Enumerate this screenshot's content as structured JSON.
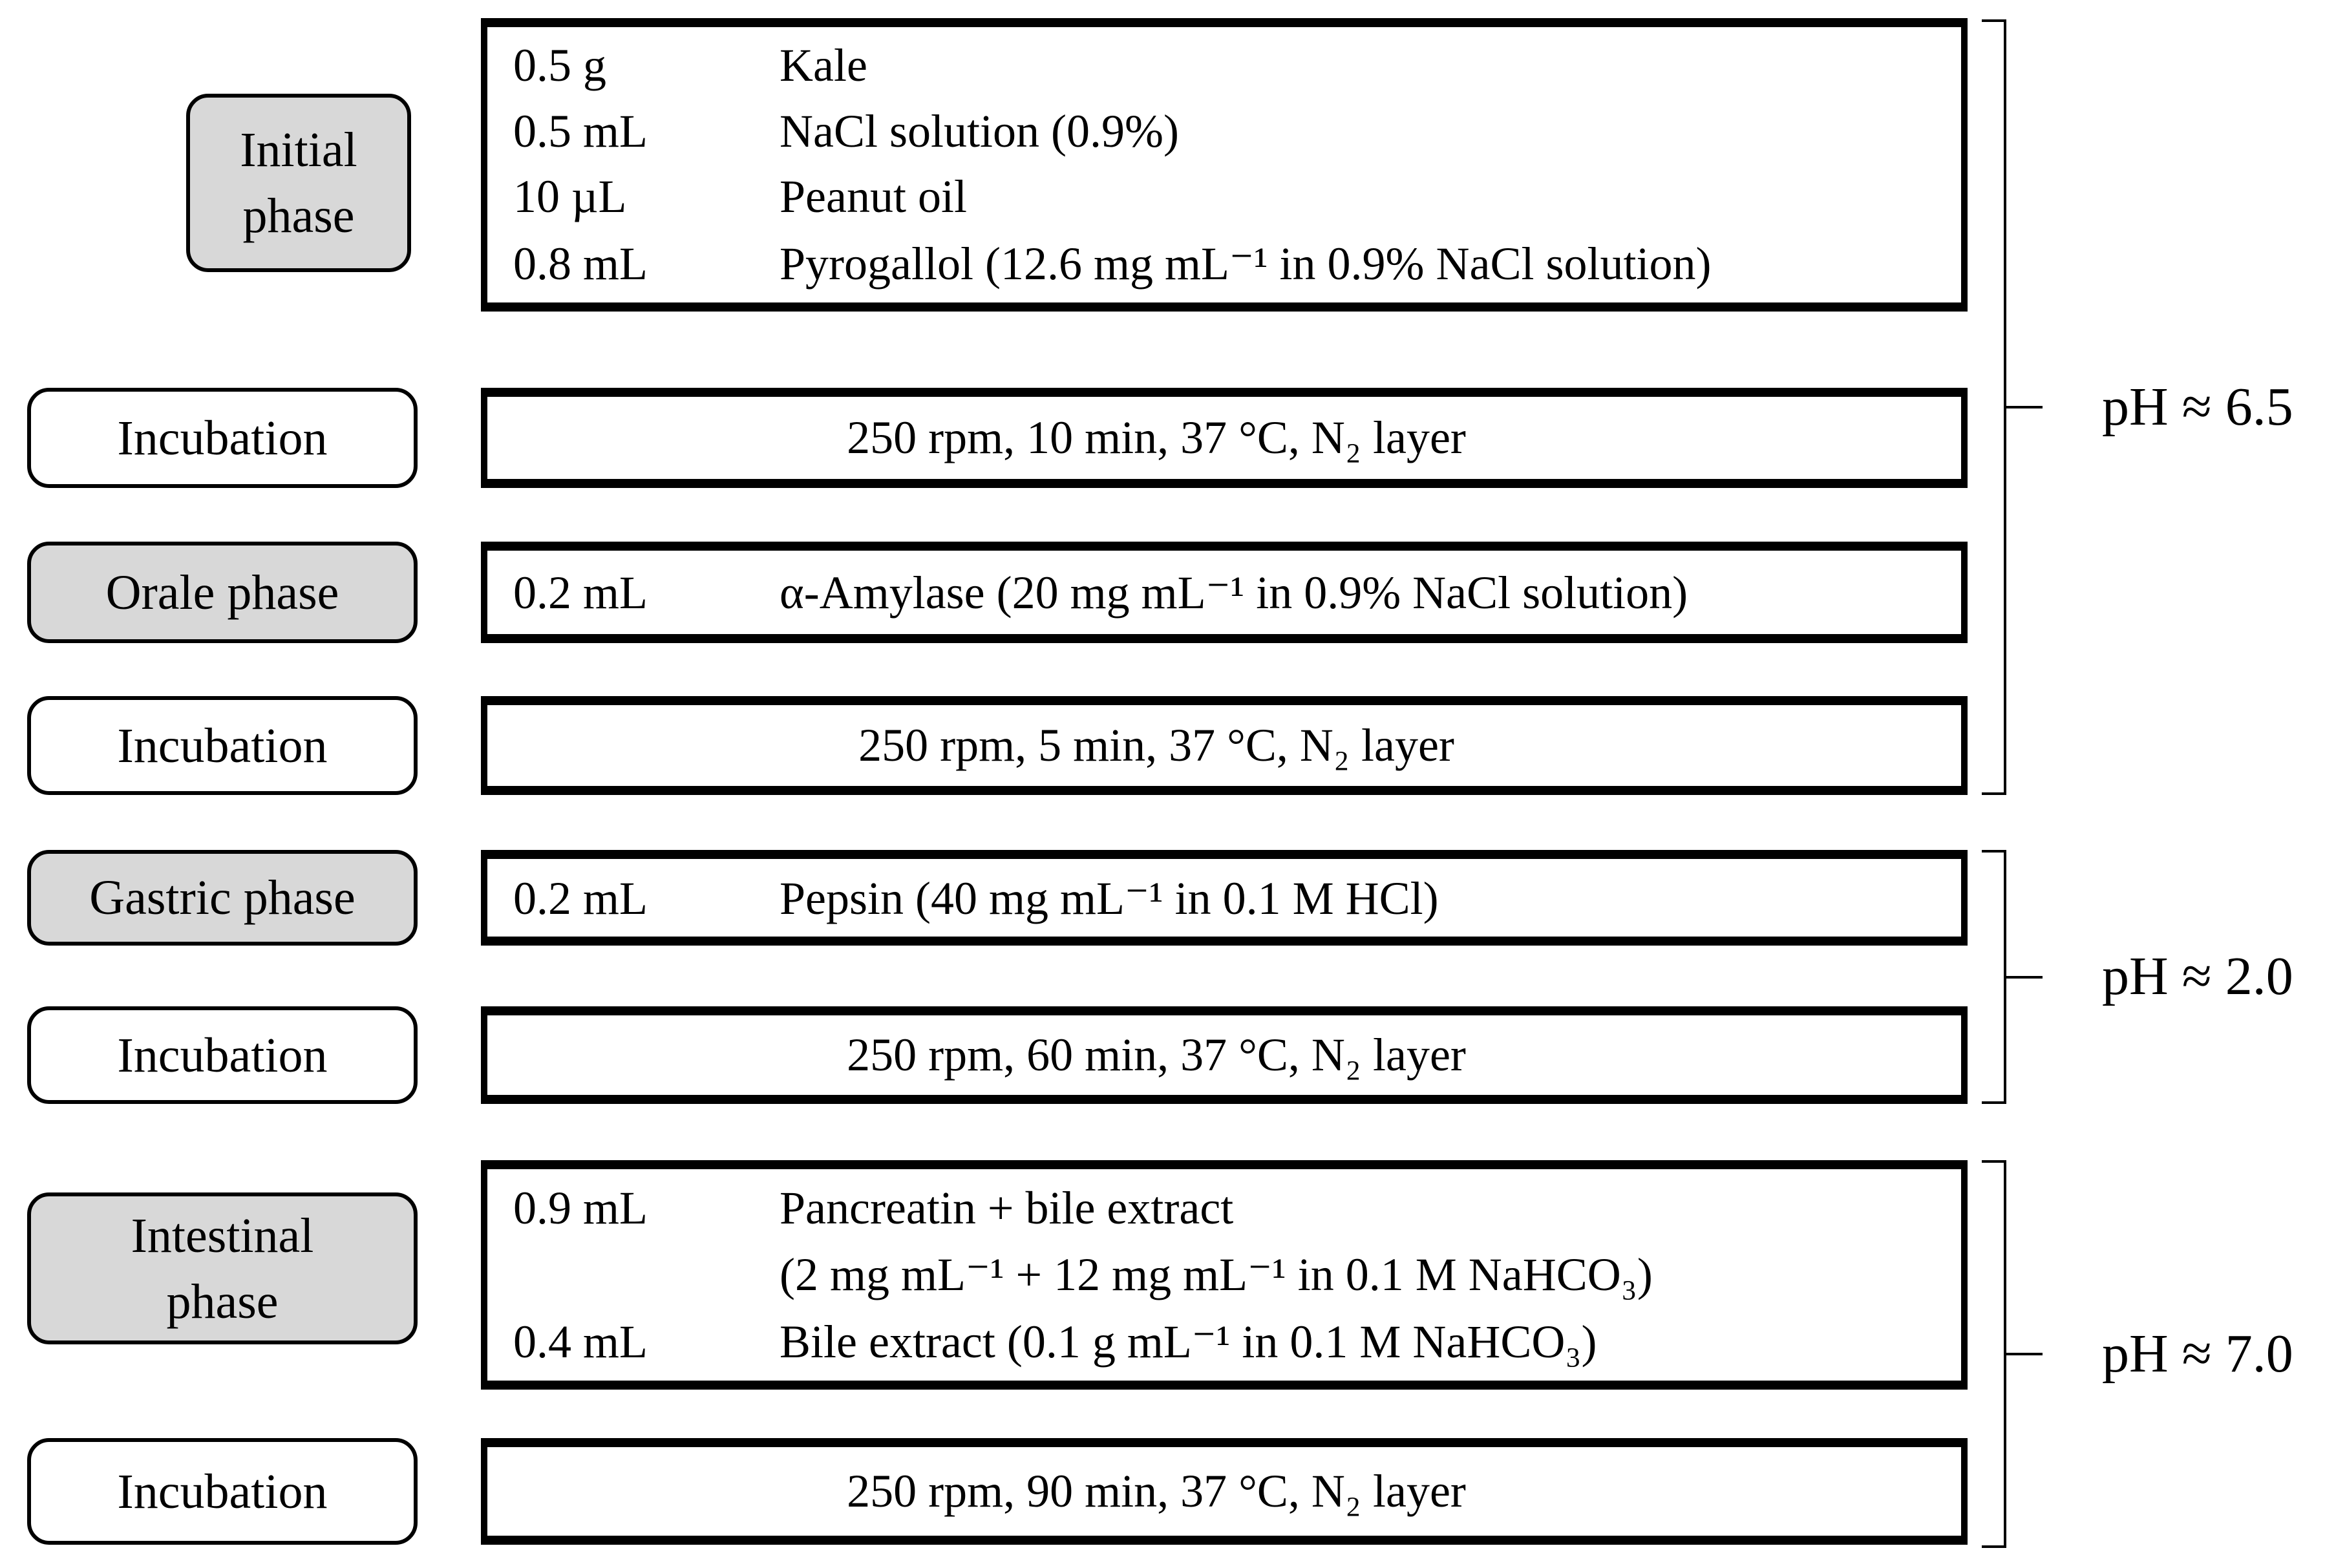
{
  "phases": {
    "initial": {
      "label": "Initial phase",
      "items": [
        {
          "amount": "0.5 g",
          "desc": "Kale"
        },
        {
          "amount": "0.5 mL",
          "desc": "NaCl solution (0.9%)"
        },
        {
          "amount": "10 µL",
          "desc": "Peanut oil"
        },
        {
          "amount": "0.8 mL",
          "desc": "Pyrogallol (12.6 mg mL⁻¹ in 0.9% NaCl solution)"
        }
      ]
    },
    "incubation1": {
      "label": "Incubation",
      "condition": "250 rpm, 10 min, 37 °C, N₂ layer"
    },
    "oral": {
      "label": "Orale phase",
      "items": [
        {
          "amount": "0.2 mL",
          "desc": "α-Amylase (20 mg mL⁻¹ in 0.9% NaCl solution)"
        }
      ]
    },
    "incubation2": {
      "label": "Incubation",
      "condition": "250 rpm, 5 min, 37 °C, N₂ layer"
    },
    "gastric": {
      "label": "Gastric phase",
      "items": [
        {
          "amount": "0.2 mL",
          "desc": "Pepsin (40 mg mL⁻¹ in 0.1 M HCl)"
        }
      ]
    },
    "incubation3": {
      "label": "Incubation",
      "condition": "250 rpm, 60 min, 37 °C, N₂ layer"
    },
    "intestinal": {
      "label": "Intestinal phase",
      "items": [
        {
          "amount": "0.9 mL",
          "desc": "Pancreatin + bile extract"
        },
        {
          "amount": "",
          "desc": "(2 mg mL⁻¹ + 12 mg mL⁻¹ in 0.1 M NaHCO₃)"
        },
        {
          "amount": "0.4 mL",
          "desc": "Bile extract (0.1 g mL⁻¹ in 0.1 M NaHCO₃)"
        }
      ]
    },
    "incubation4": {
      "label": "Incubation",
      "condition": "250 rpm, 90 min, 37 °C, N₂ layer"
    }
  },
  "ph_annotations": [
    {
      "text": "pH ≈ 6.5"
    },
    {
      "text": "pH ≈ 2.0"
    },
    {
      "text": "pH ≈ 7.0"
    }
  ],
  "colors": {
    "phase_fill": "#d8d8d8",
    "box_border": "#000000",
    "background": "#ffffff"
  }
}
